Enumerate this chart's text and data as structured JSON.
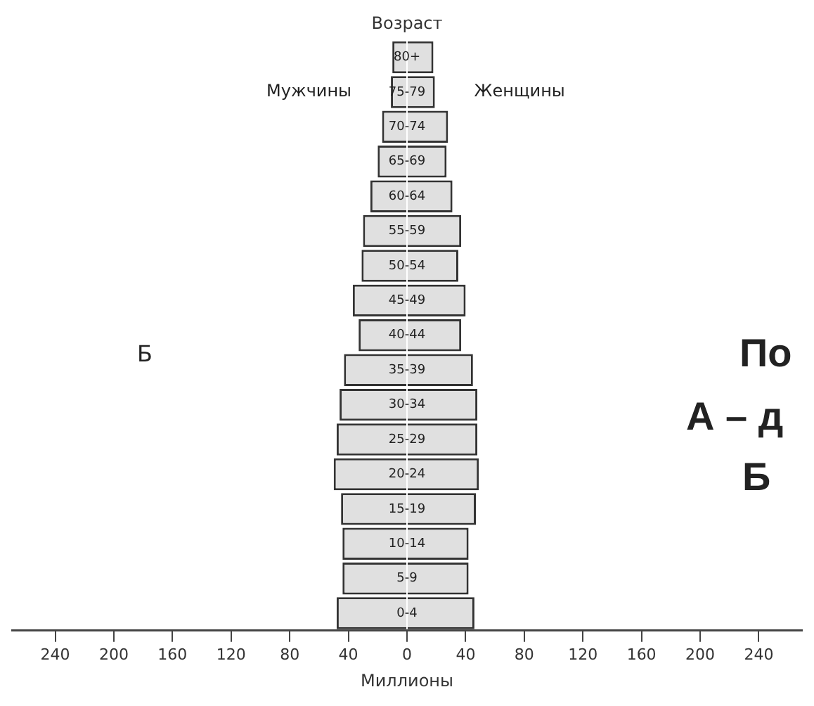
{
  "chart_data": {
    "type": "bar",
    "orientation": "horizontal",
    "stacked": true,
    "title": "Возраст",
    "xlabel": "Миллионы",
    "categories": [
      "80+",
      "75-79",
      "70-74",
      "65-69",
      "60-64",
      "55-59",
      "50-54",
      "45-49",
      "40-44",
      "35-39",
      "30-34",
      "25-29",
      "20-24",
      "15-19",
      "10-14",
      "5-9",
      "0-4"
    ],
    "series": [
      {
        "name": "Мужчины",
        "color": "#e0e0e0",
        "values": [
          -10,
          -11,
          -17,
          -20,
          -25,
          -30,
          -31,
          -37,
          -33,
          -43,
          -46,
          -48,
          -50,
          -45,
          -44,
          -44,
          -48
        ]
      },
      {
        "name": "Женщины",
        "color": "#e0e0e0",
        "values": [
          18,
          19,
          28,
          27,
          31,
          37,
          35,
          40,
          37,
          45,
          48,
          48,
          49,
          47,
          42,
          42,
          46
        ]
      }
    ],
    "xlim": [
      -270,
      270
    ],
    "xticks": [
      {
        "value": -240,
        "label": "240"
      },
      {
        "value": -200,
        "label": "200"
      },
      {
        "value": -160,
        "label": "160"
      },
      {
        "value": -120,
        "label": "120"
      },
      {
        "value": -80,
        "label": "80"
      },
      {
        "value": -40,
        "label": "40"
      },
      0,
      40,
      80,
      120,
      160,
      200,
      240
    ],
    "grid": false,
    "legend": false,
    "annotations": [
      "Б",
      "По",
      "А – д",
      "Б"
    ]
  }
}
